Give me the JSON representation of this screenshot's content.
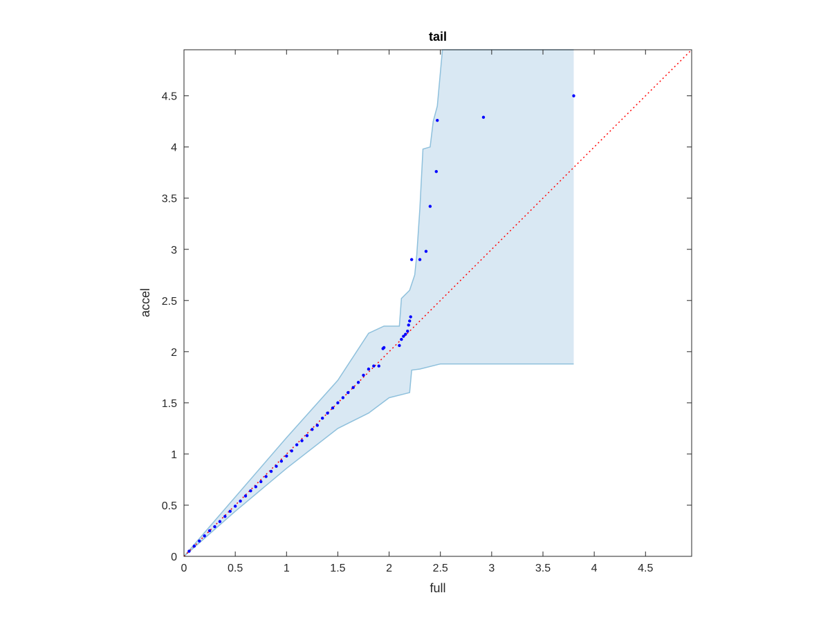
{
  "chart_data": {
    "type": "scatter",
    "title": "tail",
    "xlabel": "full",
    "ylabel": "accel",
    "xlim": [
      0,
      4.95
    ],
    "ylim": [
      0,
      4.95
    ],
    "xticks": [
      "0",
      "0.5",
      "1",
      "1.5",
      "2",
      "2.5",
      "3",
      "3.5",
      "4",
      "4.5"
    ],
    "yticks": [
      "0",
      "0.5",
      "1",
      "1.5",
      "2",
      "2.5",
      "3",
      "3.5",
      "4",
      "4.5"
    ],
    "grid": false,
    "reference_line": {
      "style": "dotted",
      "color": "#ff0000",
      "from": [
        0,
        0
      ],
      "to": [
        4.95,
        4.95
      ]
    },
    "band": {
      "color_fill": "#d9e8f3",
      "color_edge": "#8ec0dc",
      "upper": [
        [
          0,
          0
        ],
        [
          0.5,
          0.58
        ],
        [
          1,
          1.16
        ],
        [
          1.5,
          1.72
        ],
        [
          1.8,
          2.18
        ],
        [
          1.95,
          2.25
        ],
        [
          2.1,
          2.25
        ],
        [
          2.12,
          2.52
        ],
        [
          2.2,
          2.6
        ],
        [
          2.25,
          2.75
        ],
        [
          2.27,
          2.95
        ],
        [
          2.3,
          3.4
        ],
        [
          2.33,
          3.98
        ],
        [
          2.4,
          4.0
        ],
        [
          2.43,
          4.25
        ],
        [
          2.47,
          4.4
        ],
        [
          2.52,
          4.95
        ],
        [
          3.8,
          4.95
        ]
      ],
      "lower": [
        [
          0,
          0
        ],
        [
          0.5,
          0.44
        ],
        [
          1,
          0.86
        ],
        [
          1.5,
          1.25
        ],
        [
          1.8,
          1.4
        ],
        [
          2.0,
          1.55
        ],
        [
          2.2,
          1.6
        ],
        [
          2.22,
          1.82
        ],
        [
          2.3,
          1.83
        ],
        [
          2.5,
          1.88
        ],
        [
          3.8,
          1.88
        ]
      ]
    },
    "series": [
      {
        "color": "#0000ff",
        "points": [
          [
            0.05,
            0.05
          ],
          [
            0.1,
            0.1
          ],
          [
            0.15,
            0.15
          ],
          [
            0.2,
            0.2
          ],
          [
            0.25,
            0.25
          ],
          [
            0.3,
            0.29
          ],
          [
            0.35,
            0.34
          ],
          [
            0.4,
            0.39
          ],
          [
            0.45,
            0.44
          ],
          [
            0.5,
            0.49
          ],
          [
            0.55,
            0.54
          ],
          [
            0.6,
            0.59
          ],
          [
            0.65,
            0.64
          ],
          [
            0.7,
            0.68
          ],
          [
            0.75,
            0.73
          ],
          [
            0.8,
            0.78
          ],
          [
            0.85,
            0.83
          ],
          [
            0.9,
            0.88
          ],
          [
            0.95,
            0.93
          ],
          [
            1.0,
            0.98
          ],
          [
            1.05,
            1.03
          ],
          [
            1.1,
            1.09
          ],
          [
            1.15,
            1.13
          ],
          [
            1.2,
            1.18
          ],
          [
            1.25,
            1.24
          ],
          [
            1.3,
            1.28
          ],
          [
            1.35,
            1.35
          ],
          [
            1.4,
            1.4
          ],
          [
            1.45,
            1.45
          ],
          [
            1.5,
            1.5
          ],
          [
            1.55,
            1.55
          ],
          [
            1.6,
            1.6
          ],
          [
            1.65,
            1.65
          ],
          [
            1.7,
            1.7
          ],
          [
            1.75,
            1.77
          ],
          [
            1.8,
            1.83
          ],
          [
            1.85,
            1.86
          ],
          [
            1.9,
            1.86
          ],
          [
            1.94,
            2.03
          ],
          [
            1.95,
            2.04
          ],
          [
            2.1,
            2.06
          ],
          [
            2.12,
            2.12
          ],
          [
            2.14,
            2.15
          ],
          [
            2.16,
            2.17
          ],
          [
            2.18,
            2.2
          ],
          [
            2.19,
            2.26
          ],
          [
            2.2,
            2.3
          ],
          [
            2.21,
            2.34
          ],
          [
            2.22,
            2.9
          ],
          [
            2.3,
            2.9
          ],
          [
            2.36,
            2.98
          ],
          [
            2.4,
            3.42
          ],
          [
            2.46,
            3.76
          ],
          [
            2.47,
            4.26
          ],
          [
            2.92,
            4.29
          ],
          [
            3.8,
            4.5
          ]
        ]
      }
    ]
  }
}
